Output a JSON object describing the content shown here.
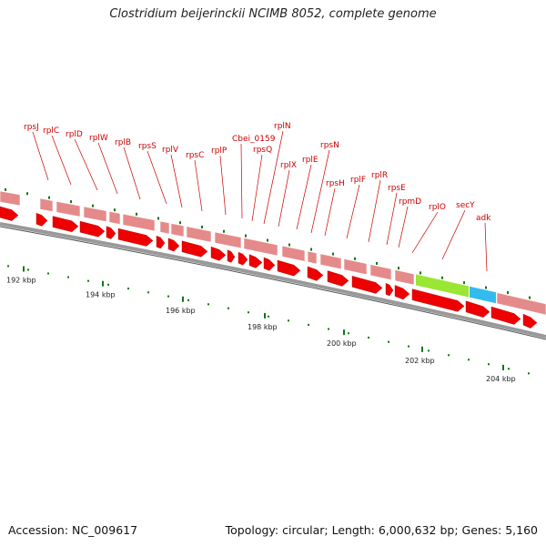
{
  "title": "Clostridium beijerinckii NCIMB 8052, complete genome",
  "accession_text": "Accession: NC_009617",
  "summary_text": "Topology: circular; Length: 6,000,632 bp; Genes: 5,160",
  "colors": {
    "gene_red": "#ee0000",
    "gene_pink": "#e58a8a",
    "secY_green": "#99e633",
    "adk_blue": "#33bbee",
    "label_red": "#cc0000",
    "tick_green": "#117711",
    "backbone_gray": "#888888"
  },
  "scale_labels": [
    "192 kbp",
    "194 kbp",
    "196 kbp",
    "198 kbp",
    "200 kbp",
    "202 kbp",
    "204 kbp"
  ],
  "gene_labels": [
    "rpsJ",
    "rplC",
    "rplD",
    "rplW",
    "rplB",
    "rpsS",
    "rplV",
    "rpsC",
    "rplP",
    "Cbei_0159",
    "rpsQ",
    "rplN",
    "rplX",
    "rplE",
    "rpsN",
    "rpsH",
    "rplF",
    "rplR",
    "rpsE",
    "rpmD",
    "rplO",
    "secY",
    "adk"
  ]
}
